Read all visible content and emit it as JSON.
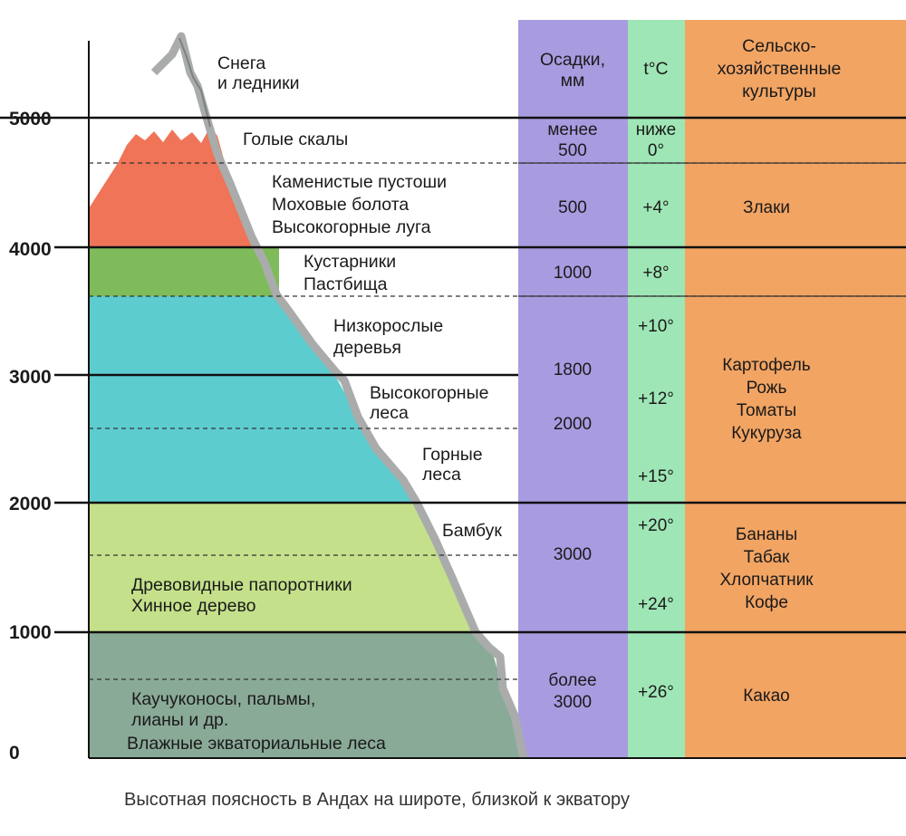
{
  "caption": "Высотная поясность в Андах на широте, близкой к экватору",
  "altitude_axis": [
    "0",
    "1000",
    "2000",
    "3000",
    "4000",
    "5000"
  ],
  "zones": {
    "snow": [
      "Снега",
      "и ледники"
    ],
    "rocks": [
      "Голые скалы"
    ],
    "upper": [
      "Каменистые пустоши",
      "Моховые болота",
      "Высокогорные луга"
    ],
    "shrubs": [
      "Кустарники",
      "Пастбища"
    ],
    "low_trees": [
      "Низкорослые",
      "деревья"
    ],
    "highland_forest": [
      "Высокогорные",
      "леса"
    ],
    "mountain_forest": [
      "Горные",
      "леса"
    ],
    "bamboo": [
      "Бамбук"
    ],
    "ferns": [
      "Древовидные папоротники",
      "Хинное дерево"
    ],
    "rubber": [
      "Каучуконосы, пальмы,",
      "лианы и др."
    ],
    "equatorial": [
      "Влажные экваториальные леса"
    ]
  },
  "columns": {
    "precip_header": [
      "Осадки,",
      "мм"
    ],
    "temp_header": [
      "t°C"
    ],
    "crops_header": [
      "Сельско-",
      "хозяйственные",
      "культуры"
    ],
    "precip_values": [
      [
        "менее",
        "500"
      ],
      [
        "500"
      ],
      [
        "1000"
      ],
      [
        "1800"
      ],
      [
        "2000"
      ],
      [
        "3000"
      ],
      [
        "более",
        "3000"
      ]
    ],
    "temp_values": [
      [
        "ниже",
        "0°"
      ],
      [
        "+4°"
      ],
      [
        "+8°"
      ],
      [
        "+10°"
      ],
      [
        "+12°"
      ],
      [
        "+15°"
      ],
      [
        "+20°"
      ],
      [
        "+24°"
      ],
      [
        "+26°"
      ]
    ],
    "crops_values": [
      [
        "Злаки"
      ],
      [
        "Картофель",
        "Рожь",
        "Томаты",
        "Кукуруза"
      ],
      [
        "Бананы",
        "Табак",
        "Хлопчатник",
        "Кофе"
      ],
      [
        "Какао"
      ]
    ]
  },
  "colors": {
    "snow_belt": "#f07458",
    "shrub_belt": "#7fbb5a",
    "forest_belt": "#5ccccf",
    "fern_belt": "#c4e08a",
    "equatorial_belt": "#8aaa98",
    "precip_column": "#a99be0",
    "temp_column": "#9fe6b6",
    "crops_column": "#f2a463",
    "mountain_edge": "#a9acab"
  }
}
